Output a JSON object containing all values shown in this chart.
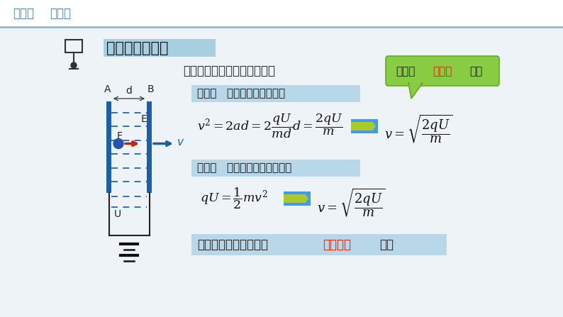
{
  "bg_color": "#eef3f8",
  "header_bg": "#ffffff",
  "header_text1": "新教材",
  "header_text2": "新高考",
  "header_color": "#4a86c8",
  "header_line_color": "#7ab4d4",
  "title_text": "带电粒子的加速",
  "title_bg": "#a8cfe0",
  "question_text": "求电荷到达负极板时的速度？",
  "bubble_bg": "#88cc44",
  "bubble_border": "#66aa22",
  "bubble_text1": "初速度",
  "bubble_text2": "不为零",
  "bubble_text3": "呢？",
  "bubble_color1": "#1a1a1a",
  "bubble_color2": "#dd2200",
  "bubble_color3": "#1a1a1a",
  "method1_text": "解法一   运用运动学知识求解",
  "method1_bg": "#b8d8ea",
  "method2_text": "解法二   运用动能定理知识求解",
  "method2_bg": "#b8d8ea",
  "conclusion_bg": "#b8d8ea",
  "conc1": "粒子加速后的速度只与",
  "conc2": "加速电压",
  "conc3": "有关",
  "conc_color1": "#1a1a1a",
  "conc_color2": "#dd2200",
  "conc_color3": "#1a1a1a",
  "plate_color": "#1a5faa",
  "dash_color": "#2266bb",
  "wire_color": "#222222",
  "arrow_red": "#cc2200",
  "arrow_blue": "#1a5faa",
  "ball_color": "#2255aa",
  "label_color": "#222222",
  "math_color": "#111111",
  "arrow_img_colors": [
    "#3399ff",
    "#99cc00",
    "#ffcc00"
  ],
  "font_size_header": 12,
  "font_size_title": 15,
  "font_size_question": 12,
  "font_size_method": 11,
  "font_size_formula": 12,
  "font_size_bubble": 11,
  "font_size_conclusion": 12,
  "font_size_label": 10
}
